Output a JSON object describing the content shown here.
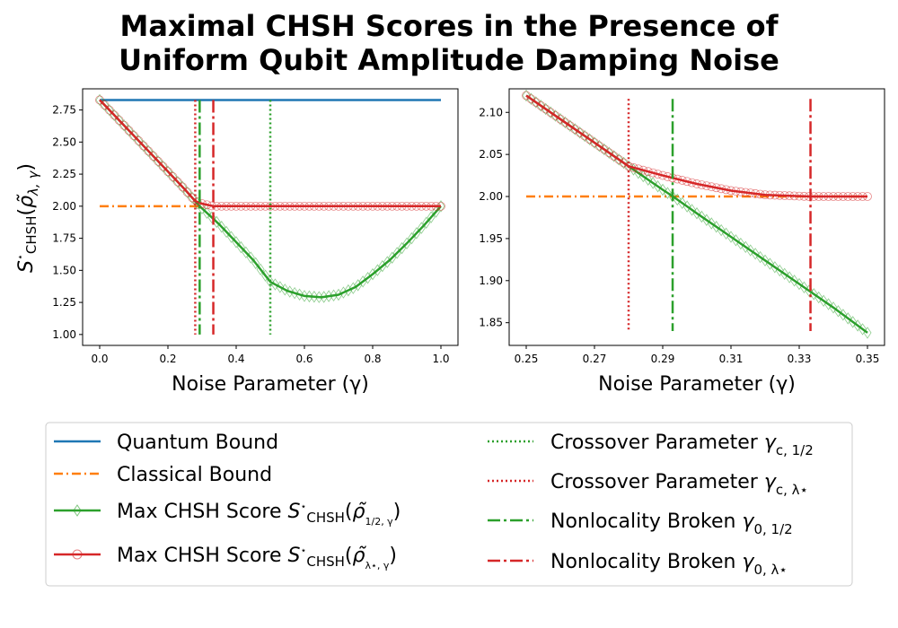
{
  "title_lines": [
    "Maximal CHSH Scores in the Presence of",
    "Uniform Qubit Amplitude Damping Noise"
  ],
  "colors": {
    "quantum": "#1f77b4",
    "classical": "#ff7f0e",
    "half": "#2ca02c",
    "lambda": "#d62728"
  },
  "chart_data": [
    {
      "type": "line",
      "panel": "left",
      "xlabel": "Noise Parameter (γ)",
      "ylabel": "S*_CHSH(ρ̃_{λ,γ})",
      "xlim": [
        -0.05,
        1.05
      ],
      "ylim": [
        0.915,
        2.915
      ],
      "xticks": [
        "0.0",
        "0.2",
        "0.4",
        "0.6",
        "0.8",
        "1.0"
      ],
      "xtick_values": [
        0.0,
        0.2,
        0.4,
        0.6,
        0.8,
        1.0
      ],
      "yticks": [
        "1.00",
        "1.25",
        "1.50",
        "1.75",
        "2.00",
        "2.25",
        "2.50",
        "2.75"
      ],
      "ytick_values": [
        1.0,
        1.25,
        1.5,
        1.75,
        2.0,
        2.25,
        2.5,
        2.75
      ],
      "quantum_bound": {
        "x": [
          0.0,
          1.0
        ],
        "y": 2.828
      },
      "classical_bound": {
        "x": [
          0.0,
          0.293
        ],
        "y": 2.0
      },
      "series": [
        {
          "key": "half",
          "x": [
            0.0,
            0.05,
            0.1,
            0.15,
            0.2,
            0.25,
            0.293,
            0.35,
            0.4,
            0.45,
            0.5,
            0.55,
            0.6,
            0.65,
            0.7,
            0.75,
            0.8,
            0.85,
            0.9,
            0.95,
            1.0
          ],
          "y": [
            2.828,
            2.69,
            2.55,
            2.41,
            2.27,
            2.13,
            2.0,
            1.86,
            1.72,
            1.58,
            1.41,
            1.34,
            1.3,
            1.29,
            1.31,
            1.37,
            1.47,
            1.58,
            1.71,
            1.85,
            2.0
          ]
        },
        {
          "key": "lambda",
          "x": [
            0.0,
            0.05,
            0.1,
            0.15,
            0.2,
            0.25,
            0.28,
            0.3,
            0.333,
            0.4,
            0.5,
            0.6,
            0.7,
            0.8,
            0.9,
            1.0
          ],
          "y": [
            2.828,
            2.69,
            2.55,
            2.41,
            2.27,
            2.13,
            2.04,
            2.02,
            2.0,
            2.0,
            2.0,
            2.0,
            2.0,
            2.0,
            2.0,
            2.0
          ]
        }
      ],
      "vlines": [
        {
          "key": "cross_half",
          "x": 0.5,
          "y": [
            1.0,
            2.828
          ]
        },
        {
          "key": "cross_lambda",
          "x": 0.28,
          "y": [
            1.0,
            2.828
          ]
        },
        {
          "key": "nl_half",
          "x": 0.293,
          "y": [
            1.0,
            2.828
          ]
        },
        {
          "key": "nl_lambda",
          "x": 0.333,
          "y": [
            1.0,
            2.828
          ]
        }
      ]
    },
    {
      "type": "line",
      "panel": "right",
      "xlabel": "Noise Parameter (γ)",
      "ylabel": "",
      "xlim": [
        0.245,
        0.355
      ],
      "ylim": [
        1.823,
        2.128
      ],
      "xticks": [
        "0.25",
        "0.27",
        "0.29",
        "0.31",
        "0.33",
        "0.35"
      ],
      "xtick_values": [
        0.25,
        0.27,
        0.29,
        0.31,
        0.33,
        0.35
      ],
      "yticks": [
        "1.85",
        "1.90",
        "1.95",
        "2.00",
        "2.05",
        "2.10"
      ],
      "ytick_values": [
        1.85,
        1.9,
        1.95,
        2.0,
        2.05,
        2.1
      ],
      "classical_bound": {
        "x": [
          0.25,
          0.35
        ],
        "y": 2.0
      },
      "series": [
        {
          "key": "half",
          "x": [
            0.25,
            0.26,
            0.27,
            0.28,
            0.29,
            0.293,
            0.3,
            0.31,
            0.32,
            0.33,
            0.34,
            0.35
          ],
          "y": [
            2.12,
            2.092,
            2.064,
            2.036,
            2.008,
            2.0,
            1.98,
            1.952,
            1.924,
            1.896,
            1.868,
            1.838
          ]
        },
        {
          "key": "lambda",
          "x": [
            0.25,
            0.26,
            0.27,
            0.28,
            0.29,
            0.3,
            0.31,
            0.32,
            0.333,
            0.34,
            0.35
          ],
          "y": [
            2.12,
            2.092,
            2.064,
            2.036,
            2.025,
            2.015,
            2.007,
            2.002,
            2.0,
            2.0,
            2.0
          ]
        }
      ],
      "vlines": [
        {
          "key": "cross_lambda",
          "x": 0.28,
          "y": [
            1.84,
            2.116
          ]
        },
        {
          "key": "nl_half",
          "x": 0.2929,
          "y": [
            1.84,
            2.116
          ]
        },
        {
          "key": "nl_lambda",
          "x": 0.3333,
          "y": [
            1.84,
            2.116
          ]
        }
      ]
    }
  ],
  "legend": {
    "left": [
      {
        "key": "quantum",
        "label": "Quantum Bound"
      },
      {
        "key": "classical",
        "label": "Classical Bound"
      },
      {
        "key": "half",
        "label": "Max CHSH Score S*_CHSH(ρ̃_{1/2,γ})"
      },
      {
        "key": "lambda",
        "label": "Max CHSH Score S*_CHSH(ρ̃_{λ*,γ})"
      }
    ],
    "right": [
      {
        "key": "cross_half",
        "label": "Crossover Parameter γ_{c,1/2}"
      },
      {
        "key": "cross_lambda",
        "label": "Crossover Parameter γ_{c,λ*}"
      },
      {
        "key": "nl_half",
        "label": "Nonlocality Broken γ_{0,1/2}"
      },
      {
        "key": "nl_lambda",
        "label": "Nonlocality Broken γ_{0,λ*}"
      }
    ]
  }
}
